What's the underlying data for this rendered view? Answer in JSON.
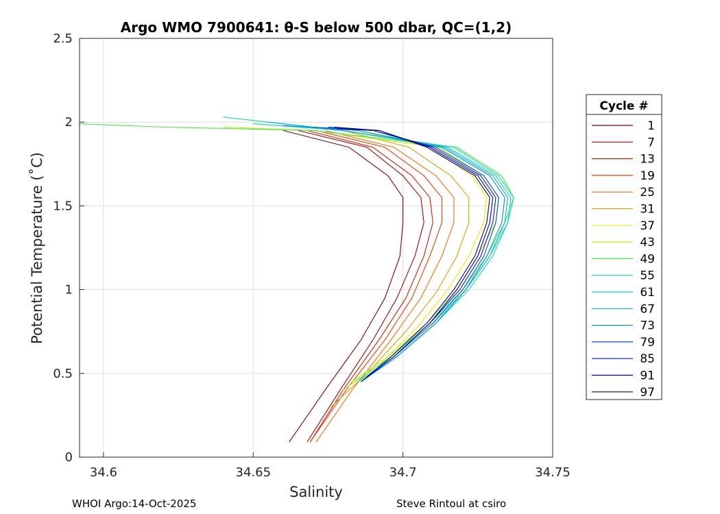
{
  "chart_data": {
    "type": "line",
    "title": "Argo WMO 7900641: θ-S below 500 dbar,  QC=(1,2)",
    "xlabel": "Salinity",
    "ylabel": "Potential Temperature (˚C)",
    "xlim": [
      34.592,
      34.75
    ],
    "ylim": [
      0,
      2.5
    ],
    "x_ticks": [
      34.6,
      34.65,
      34.7,
      34.75
    ],
    "x_tick_labels": [
      "34.6",
      "34.65",
      "34.7",
      "34.75"
    ],
    "y_ticks": [
      0,
      0.5,
      1,
      1.5,
      2,
      2.5
    ],
    "y_tick_labels": [
      "0",
      "0.5",
      "1",
      "1.5",
      "2",
      "2.5"
    ],
    "grid": true,
    "legend_title": "Cycle #",
    "legend_position": "right-outside",
    "series": [
      {
        "name": "1",
        "color": "#800000",
        "x": [
          34.662,
          34.674,
          34.686,
          34.694,
          34.699,
          34.7,
          34.7,
          34.695,
          34.682,
          34.66
        ],
        "y": [
          0.09,
          0.4,
          0.7,
          0.95,
          1.2,
          1.4,
          1.55,
          1.68,
          1.85,
          1.95
        ]
      },
      {
        "name": "7",
        "color": "#a80000",
        "x": [
          34.668,
          34.679,
          34.69,
          34.698,
          34.704,
          34.707,
          34.706,
          34.7,
          34.688,
          34.665
        ],
        "y": [
          0.09,
          0.4,
          0.7,
          0.95,
          1.2,
          1.4,
          1.55,
          1.68,
          1.85,
          1.95
        ]
      },
      {
        "name": "13",
        "color": "#d41a00",
        "x": [
          34.669,
          34.68,
          34.692,
          34.701,
          34.707,
          34.71,
          34.709,
          34.703,
          34.69,
          34.668
        ],
        "y": [
          0.09,
          0.4,
          0.7,
          0.95,
          1.2,
          1.4,
          1.55,
          1.68,
          1.85,
          1.95
        ]
      },
      {
        "name": "19",
        "color": "#f03a00",
        "x": [
          34.669,
          34.681,
          34.694,
          34.703,
          34.709,
          34.713,
          34.713,
          34.707,
          34.694,
          34.671
        ],
        "y": [
          0.09,
          0.4,
          0.7,
          0.95,
          1.2,
          1.4,
          1.55,
          1.68,
          1.85,
          1.95
        ]
      },
      {
        "name": "25",
        "color": "#ff6a00",
        "x": [
          34.671,
          34.683,
          34.696,
          34.706,
          34.713,
          34.717,
          34.717,
          34.711,
          34.697,
          34.674
        ],
        "y": [
          0.09,
          0.4,
          0.7,
          0.95,
          1.2,
          1.4,
          1.55,
          1.68,
          1.85,
          1.95
        ]
      },
      {
        "name": "31",
        "color": "#d8a000",
        "x": [
          34.676,
          34.688,
          34.701,
          34.711,
          34.718,
          34.722,
          34.722,
          34.716,
          34.702,
          34.68
        ],
        "y": [
          0.3,
          0.5,
          0.75,
          0.98,
          1.2,
          1.4,
          1.55,
          1.68,
          1.85,
          1.95
        ]
      },
      {
        "name": "37",
        "color": "#f8e800",
        "x": [
          34.68,
          34.692,
          34.705,
          34.715,
          34.722,
          34.727,
          34.728,
          34.723,
          34.709,
          34.685
        ],
        "y": [
          0.4,
          0.55,
          0.78,
          1.0,
          1.2,
          1.4,
          1.55,
          1.68,
          1.85,
          1.95
        ]
      },
      {
        "name": "43",
        "color": "#b8f000",
        "x": [
          34.683,
          34.695,
          34.708,
          34.718,
          34.725,
          34.731,
          34.732,
          34.727,
          34.712,
          34.67,
          34.64
        ],
        "y": [
          0.45,
          0.6,
          0.8,
          1.0,
          1.2,
          1.4,
          1.55,
          1.68,
          1.85,
          1.95,
          1.97
        ]
      },
      {
        "name": "49",
        "color": "#40ee40",
        "x": [
          34.684,
          34.696,
          34.709,
          34.72,
          34.728,
          34.734,
          34.737,
          34.733,
          34.718,
          34.67,
          34.62,
          34.592
        ],
        "y": [
          0.45,
          0.6,
          0.8,
          1.0,
          1.2,
          1.4,
          1.55,
          1.68,
          1.85,
          1.95,
          1.97,
          1.99
        ]
      },
      {
        "name": "55",
        "color": "#10e090",
        "x": [
          34.685,
          34.697,
          34.71,
          34.721,
          34.729,
          34.735,
          34.737,
          34.732,
          34.717,
          34.68,
          34.64
        ],
        "y": [
          0.45,
          0.6,
          0.8,
          1.0,
          1.2,
          1.4,
          1.55,
          1.68,
          1.85,
          1.95,
          2.03
        ]
      },
      {
        "name": "61",
        "color": "#00d8c8",
        "x": [
          34.686,
          34.698,
          34.711,
          34.722,
          34.73,
          34.735,
          34.736,
          34.731,
          34.715,
          34.68,
          34.65
        ],
        "y": [
          0.45,
          0.6,
          0.8,
          1.0,
          1.2,
          1.4,
          1.55,
          1.68,
          1.85,
          1.95,
          1.99
        ]
      },
      {
        "name": "67",
        "color": "#00b0e8",
        "x": [
          34.686,
          34.698,
          34.711,
          34.721,
          34.729,
          34.734,
          34.735,
          34.73,
          34.714,
          34.68,
          34.655
        ],
        "y": [
          0.45,
          0.6,
          0.8,
          1.0,
          1.2,
          1.4,
          1.55,
          1.68,
          1.85,
          1.95,
          2.0
        ]
      },
      {
        "name": "73",
        "color": "#0090d8",
        "x": [
          34.686,
          34.698,
          34.711,
          34.721,
          34.728,
          34.733,
          34.734,
          34.729,
          34.713,
          34.685,
          34.66
        ],
        "y": [
          0.45,
          0.6,
          0.8,
          1.0,
          1.2,
          1.4,
          1.55,
          1.68,
          1.85,
          1.95,
          1.98
        ]
      },
      {
        "name": "79",
        "color": "#0050e0",
        "x": [
          34.686,
          34.697,
          34.71,
          34.72,
          34.727,
          34.731,
          34.732,
          34.727,
          34.711,
          34.69,
          34.67
        ],
        "y": [
          0.45,
          0.6,
          0.8,
          1.0,
          1.2,
          1.4,
          1.55,
          1.68,
          1.85,
          1.95,
          1.97
        ]
      },
      {
        "name": "85",
        "color": "#0018d8",
        "x": [
          34.686,
          34.697,
          34.709,
          34.719,
          34.726,
          34.73,
          34.731,
          34.726,
          34.71,
          34.69,
          34.675
        ],
        "y": [
          0.45,
          0.6,
          0.8,
          1.0,
          1.2,
          1.4,
          1.55,
          1.68,
          1.85,
          1.95,
          1.97
        ]
      },
      {
        "name": "91",
        "color": "#0000a8",
        "x": [
          34.686,
          34.697,
          34.709,
          34.718,
          34.725,
          34.729,
          34.73,
          34.725,
          34.709,
          34.692,
          34.677
        ],
        "y": [
          0.45,
          0.6,
          0.8,
          1.0,
          1.2,
          1.4,
          1.55,
          1.68,
          1.85,
          1.95,
          1.97
        ]
      },
      {
        "name": "97",
        "color": "#000080",
        "x": [
          34.686,
          34.696,
          34.708,
          34.717,
          34.724,
          34.728,
          34.729,
          34.724,
          34.708,
          34.692,
          34.678
        ],
        "y": [
          0.45,
          0.6,
          0.8,
          1.0,
          1.2,
          1.4,
          1.55,
          1.68,
          1.85,
          1.95,
          1.96
        ]
      }
    ]
  },
  "footer": {
    "left": "WHOI Argo:14-Oct-2025",
    "right": "Steve Rintoul at csiro"
  }
}
